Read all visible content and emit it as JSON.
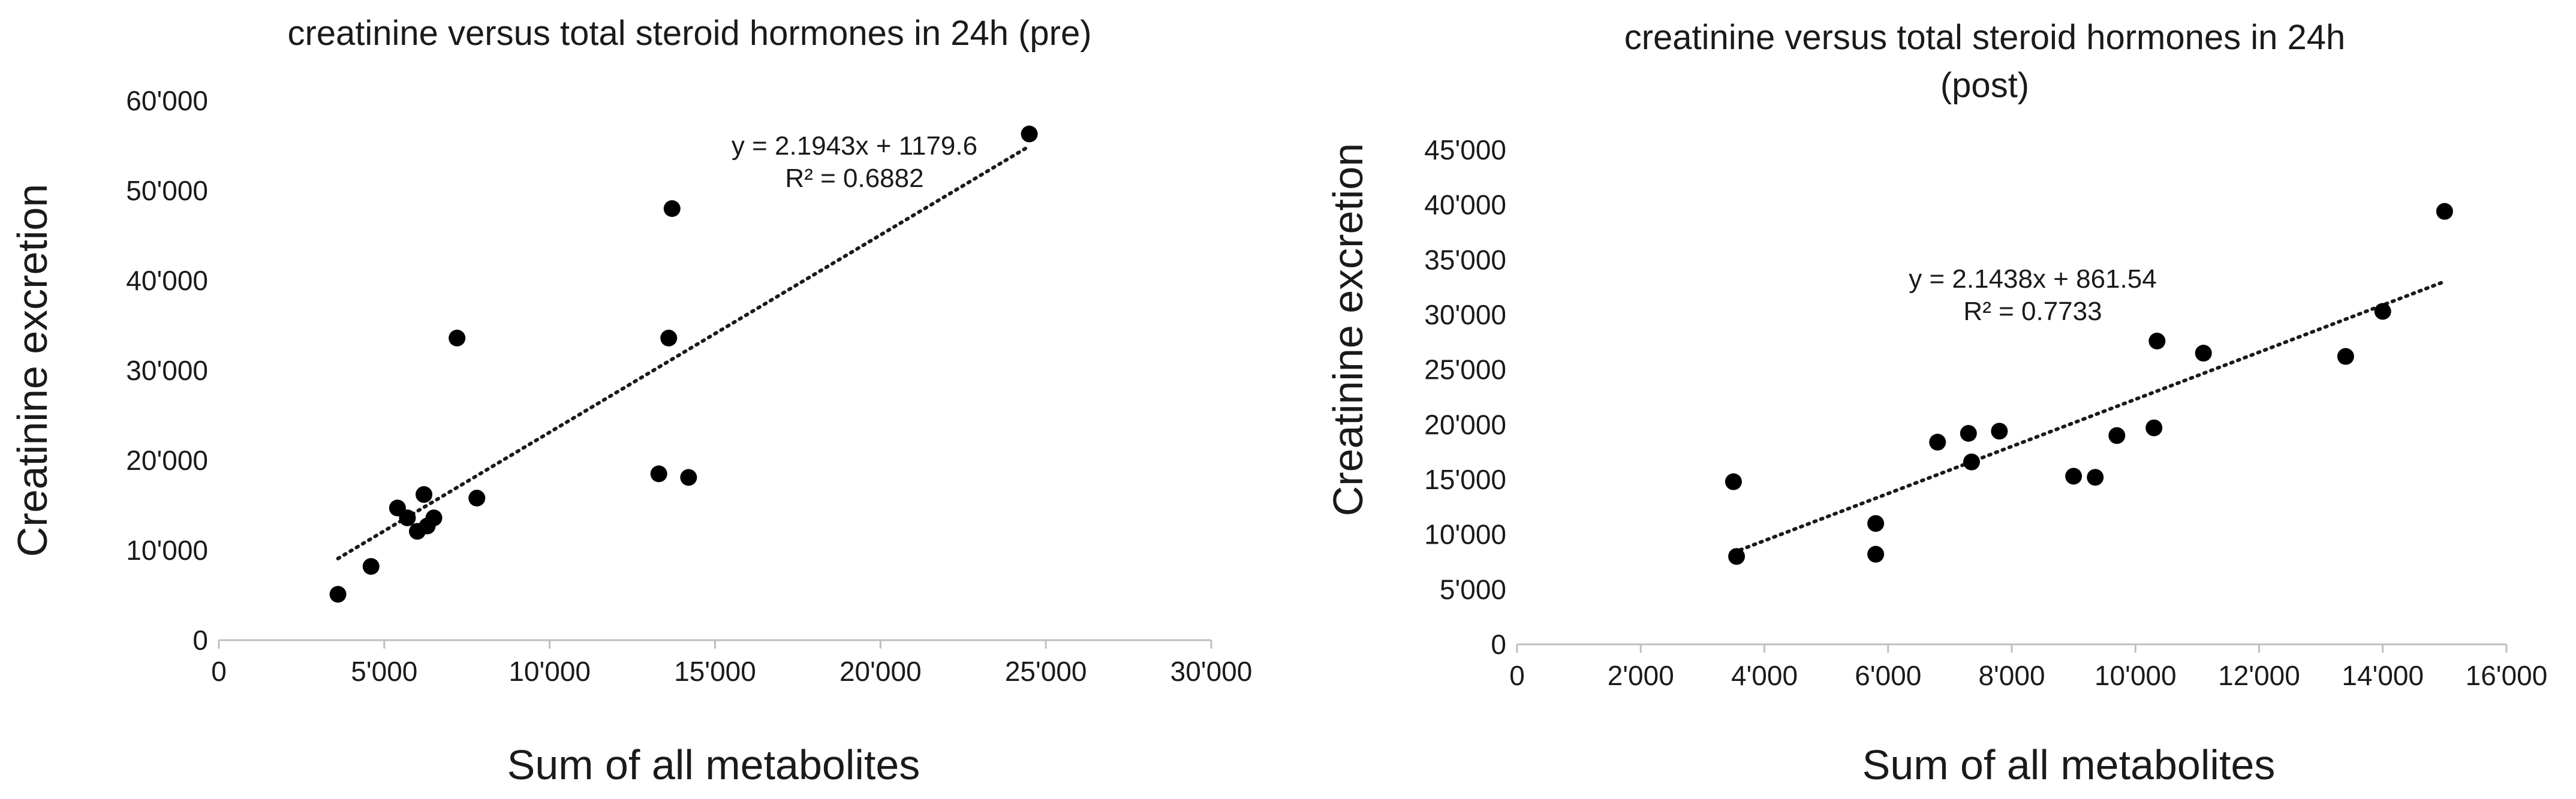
{
  "chart_data": [
    {
      "type": "scatter",
      "title_lines": [
        "creatinine versus total steroid hormones in 24h (pre)"
      ],
      "xlabel": "Sum of all metabolites",
      "ylabel": "Creatinine excretion",
      "xlim": [
        0,
        30000
      ],
      "ylim": [
        0,
        60000
      ],
      "x_ticks": [
        "0",
        "5'000",
        "10'000",
        "15'000",
        "20'000",
        "25'000",
        "30'000"
      ],
      "y_ticks": [
        "0",
        "10'000",
        "20'000",
        "30'000",
        "40'000",
        "50'000",
        "60'000"
      ],
      "grid": false,
      "trendline": {
        "slope": 2.1943,
        "intercept": 1179.6,
        "x_range": [
          3600,
          24500
        ]
      },
      "equation": "y = 2.1943x + 1179.6",
      "r2": "R² = 0.6882",
      "points": [
        {
          "x": 3600,
          "y": 5100
        },
        {
          "x": 4600,
          "y": 8200
        },
        {
          "x": 5400,
          "y": 14700
        },
        {
          "x": 5700,
          "y": 13600
        },
        {
          "x": 6000,
          "y": 12100
        },
        {
          "x": 6200,
          "y": 16200
        },
        {
          "x": 6300,
          "y": 12700
        },
        {
          "x": 6500,
          "y": 13600
        },
        {
          "x": 7200,
          "y": 33600
        },
        {
          "x": 7800,
          "y": 15800
        },
        {
          "x": 13300,
          "y": 18500
        },
        {
          "x": 13600,
          "y": 33600
        },
        {
          "x": 13700,
          "y": 48000
        },
        {
          "x": 14200,
          "y": 18100
        },
        {
          "x": 24500,
          "y": 56300
        }
      ]
    },
    {
      "type": "scatter",
      "title_lines": [
        "creatinine versus total steroid hormones in 24h",
        "(post)"
      ],
      "xlabel": "Sum of all metabolites",
      "ylabel": "Creatinine excretion",
      "xlim": [
        0,
        16000
      ],
      "ylim": [
        0,
        45000
      ],
      "x_ticks": [
        "0",
        "2'000",
        "4'000",
        "6'000",
        "8'000",
        "10'000",
        "12'000",
        "14'000",
        "16'000"
      ],
      "y_ticks": [
        "0",
        "5'000",
        "10'000",
        "15'000",
        "20'000",
        "25'000",
        "30'000",
        "35'000",
        "40'000",
        "45'000"
      ],
      "grid": false,
      "trendline": {
        "slope": 2.1438,
        "intercept": 861.54,
        "x_range": [
          3500,
          15000
        ]
      },
      "equation": "y = 2.1438x + 861.54",
      "r2": "R² = 0.7733",
      "points": [
        {
          "x": 3500,
          "y": 14800
        },
        {
          "x": 3550,
          "y": 8000
        },
        {
          "x": 5800,
          "y": 11000
        },
        {
          "x": 5800,
          "y": 8200
        },
        {
          "x": 6800,
          "y": 18400
        },
        {
          "x": 7300,
          "y": 19200
        },
        {
          "x": 7350,
          "y": 16600
        },
        {
          "x": 7800,
          "y": 19400
        },
        {
          "x": 9000,
          "y": 15300
        },
        {
          "x": 9350,
          "y": 15200
        },
        {
          "x": 9700,
          "y": 19000
        },
        {
          "x": 10300,
          "y": 19700
        },
        {
          "x": 10350,
          "y": 27600
        },
        {
          "x": 11100,
          "y": 26500
        },
        {
          "x": 13400,
          "y": 26200
        },
        {
          "x": 14000,
          "y": 30300
        },
        {
          "x": 15000,
          "y": 39400
        }
      ]
    }
  ]
}
